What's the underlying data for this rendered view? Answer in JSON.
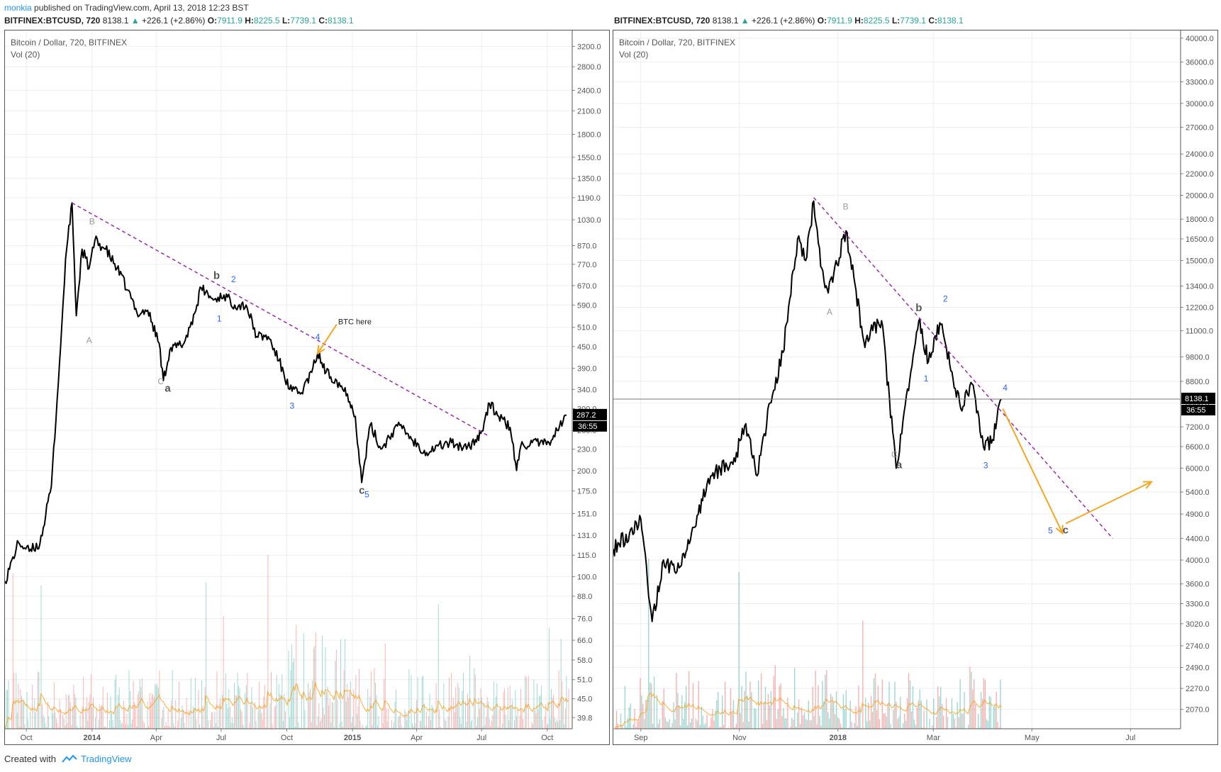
{
  "header": {
    "user": "monkia",
    "published_text": "published on TradingView.com, April 13, 2018 12:23 BST"
  },
  "tickers": [
    {
      "symbol": "BITFINEX:BTCUSD, 720",
      "last": "8138.1",
      "arrow": "▲",
      "change": "+226.1 (+2.86%)",
      "o_label": "O:",
      "o": "7911.9",
      "h_label": "H:",
      "h": "8225.5",
      "l_label": "L:",
      "l": "7739.1",
      "c_label": "C:",
      "c": "8138.1"
    },
    {
      "symbol": "BITFINEX:BTCUSD, 720",
      "last": "8138.1",
      "arrow": "▲",
      "change": "+226.1 (+2.86%)",
      "o_label": "O:",
      "o": "7911.9",
      "h_label": "H:",
      "h": "8225.5",
      "l_label": "L:",
      "l": "7739.1",
      "c_label": "C:",
      "c": "8138.1"
    }
  ],
  "colors": {
    "price_line": "#000000",
    "trendline": "#9c27b0",
    "arrow": "#f5a623",
    "wave_blue": "#2962ff",
    "wave_gray": "#999999",
    "wave_dark": "#555555",
    "vol_up": "#26a69a",
    "vol_down": "#ef5350",
    "vol_ma": "#ff9800"
  },
  "footer": {
    "created_with": "Created with",
    "brand": "TradingView"
  },
  "chart_data": [
    {
      "type": "line",
      "title": "Bitcoin / Dollar, 720, BITFINEX",
      "subtitle": "Vol (20)",
      "y_scale": "log",
      "ylim": [
        37,
        3500
      ],
      "x_ticks": [
        "Oct",
        "2014",
        "Apr",
        "Jul",
        "Oct",
        "2015",
        "Apr",
        "Jul",
        "Oct"
      ],
      "y_ticks": [
        "3200.0",
        "2800.0",
        "2400.0",
        "2100.0",
        "1800.0",
        "1550.0",
        "1350.0",
        "1190.0",
        "1030.0",
        "870.0",
        "770.0",
        "670.0",
        "590.0",
        "510.0",
        "450.0",
        "390.0",
        "340.0",
        "300.0",
        "260.0",
        "230.0",
        "200.0",
        "175.0",
        "151.0",
        "131.0",
        "115.0",
        "100.0",
        "88.0",
        "76.0",
        "66.0",
        "58.0",
        "51.0",
        "45.0",
        "39.8"
      ],
      "last_price_label": "287.2",
      "countdown_label": "36:55",
      "series": [
        {
          "x": [
            "2013-09-01",
            "2013-09-20",
            "2013-10-05",
            "2013-10-20",
            "2013-11-05",
            "2013-11-18",
            "2013-11-25",
            "2013-12-04",
            "2013-12-10",
            "2013-12-18",
            "2013-12-28",
            "2014-01-05",
            "2014-01-20",
            "2014-02-05",
            "2014-02-20",
            "2014-03-05",
            "2014-03-20",
            "2014-04-05",
            "2014-04-11",
            "2014-04-20",
            "2014-05-10",
            "2014-05-25",
            "2014-06-03",
            "2014-06-20",
            "2014-07-05",
            "2014-07-20",
            "2014-08-05",
            "2014-08-20",
            "2014-09-05",
            "2014-09-20",
            "2014-10-05",
            "2014-10-20",
            "2014-11-05",
            "2014-11-13",
            "2014-11-25",
            "2014-12-10",
            "2014-12-25",
            "2015-01-05",
            "2015-01-14",
            "2015-01-26",
            "2015-02-10",
            "2015-02-25",
            "2015-03-10",
            "2015-03-25",
            "2015-04-15",
            "2015-05-01",
            "2015-05-20",
            "2015-06-10",
            "2015-06-30",
            "2015-07-12",
            "2015-07-25",
            "2015-08-10",
            "2015-08-19",
            "2015-08-25",
            "2015-09-10",
            "2015-09-30",
            "2015-10-15",
            "2015-10-28"
          ],
          "values": [
            97,
            125,
            118,
            124,
            180,
            450,
            800,
            1150,
            550,
            850,
            750,
            900,
            850,
            750,
            650,
            560,
            570,
            460,
            360,
            440,
            460,
            560,
            660,
            610,
            630,
            590,
            590,
            480,
            480,
            410,
            340,
            330,
            380,
            430,
            380,
            360,
            330,
            285,
            185,
            270,
            230,
            255,
            270,
            245,
            225,
            235,
            240,
            230,
            255,
            310,
            285,
            265,
            200,
            235,
            240,
            237,
            260,
            287
          ]
        }
      ],
      "trendline": {
        "from": [
          "2013-12-04",
          1150
        ],
        "to": [
          "2015-07-12",
          250
        ]
      },
      "arrows": [
        {
          "from": [
            "2014-12-10",
            520
          ],
          "to": [
            "2014-11-13",
            430
          ]
        }
      ],
      "annotations": [
        {
          "text": "B",
          "x": "2013-12-28",
          "y": 1000,
          "style": "gray"
        },
        {
          "text": "A",
          "x": "2013-12-24",
          "y": 460,
          "style": "gray"
        },
        {
          "text": "C",
          "x": "2014-04-03",
          "y": 352,
          "style": "gray"
        },
        {
          "text": "a",
          "x": "2014-04-13",
          "y": 335,
          "style": "dark"
        },
        {
          "text": "b",
          "x": "2014-06-20",
          "y": 700,
          "style": "dark"
        },
        {
          "text": "1",
          "x": "2014-06-25",
          "y": 530,
          "style": "blue"
        },
        {
          "text": "2",
          "x": "2014-07-15",
          "y": 685,
          "style": "blue"
        },
        {
          "text": "3",
          "x": "2014-10-05",
          "y": 300,
          "style": "blue"
        },
        {
          "text": "4",
          "x": "2014-11-10",
          "y": 470,
          "style": "blue"
        },
        {
          "text": "BTC here",
          "x": "2014-12-12",
          "y": 520,
          "style": "note"
        },
        {
          "text": "c",
          "x": "2015-01-10",
          "y": 172,
          "style": "dark"
        },
        {
          "text": "5",
          "x": "2015-01-18",
          "y": 168,
          "style": "blue"
        }
      ],
      "volume": {
        "label": "Vol (20)",
        "relative_max": 1.0
      }
    },
    {
      "type": "line",
      "title": "Bitcoin / Dollar, 720, BITFINEX",
      "subtitle": "Vol (20)",
      "y_scale": "log",
      "ylim": [
        1900,
        41000
      ],
      "x_ticks": [
        "Sep",
        "Nov",
        "2018",
        "Mar",
        "May",
        "Jul"
      ],
      "y_ticks": [
        "40000.0",
        "36000.0",
        "33000.0",
        "30000.0",
        "27000.0",
        "24000.0",
        "22000.0",
        "20000.0",
        "18000.0",
        "16500.0",
        "15000.0",
        "13400.0",
        "12200.0",
        "11000.0",
        "9800.0",
        "8800.0",
        "8000.0",
        "7200.0",
        "6600.0",
        "6000.0",
        "5400.0",
        "4900.0",
        "4400.0",
        "4000.0",
        "3600.0",
        "3300.0",
        "3020.0",
        "2740.0",
        "2490.0",
        "2270.0",
        "2070.0"
      ],
      "last_price_label": "8138.1",
      "countdown_label": "36:55",
      "series": [
        {
          "x": [
            "2017-08-15",
            "2017-08-25",
            "2017-09-01",
            "2017-09-08",
            "2017-09-15",
            "2017-09-22",
            "2017-10-01",
            "2017-10-12",
            "2017-10-20",
            "2017-10-28",
            "2017-11-05",
            "2017-11-12",
            "2017-11-20",
            "2017-11-28",
            "2017-12-07",
            "2017-12-12",
            "2017-12-17",
            "2017-12-22",
            "2017-12-26",
            "2018-01-06",
            "2018-01-17",
            "2018-01-28",
            "2018-02-06",
            "2018-02-20",
            "2018-02-26",
            "2018-03-05",
            "2018-03-18",
            "2018-03-25",
            "2018-04-01",
            "2018-04-06",
            "2018-04-12"
          ],
          "values": [
            4200,
            4500,
            4800,
            3050,
            4000,
            3800,
            4300,
            5600,
            6000,
            6100,
            7300,
            5800,
            8000,
            10000,
            16500,
            15000,
            19500,
            14500,
            13000,
            17100,
            10500,
            11500,
            6000,
            11500,
            9600,
            11400,
            7800,
            8700,
            6600,
            6700,
            8138
          ]
        }
      ],
      "trendline": {
        "from": [
          "2017-12-17",
          19800
        ],
        "to": [
          "2018-06-20",
          4400
        ]
      },
      "arrows": [
        {
          "from": [
            "2018-04-13",
            7800
          ],
          "to": [
            "2018-05-20",
            4500
          ]
        },
        {
          "from": [
            "2018-05-22",
            4700
          ],
          "to": [
            "2018-07-14",
            5650
          ]
        }
      ],
      "horizontal_line": 8138.1,
      "annotations": [
        {
          "text": "B",
          "x": "2018-01-04",
          "y": 18800,
          "style": "gray"
        },
        {
          "text": "A",
          "x": "2017-12-25",
          "y": 11800,
          "style": "gray"
        },
        {
          "text": "C",
          "x": "2018-02-03",
          "y": 6300,
          "style": "gray"
        },
        {
          "text": "a",
          "x": "2018-02-06",
          "y": 6000,
          "style": "dark"
        },
        {
          "text": "b",
          "x": "2018-02-18",
          "y": 12000,
          "style": "dark"
        },
        {
          "text": "1",
          "x": "2018-02-23",
          "y": 8800,
          "style": "blue"
        },
        {
          "text": "2",
          "x": "2018-03-07",
          "y": 12500,
          "style": "blue"
        },
        {
          "text": "3",
          "x": "2018-04-01",
          "y": 6000,
          "style": "blue"
        },
        {
          "text": "4",
          "x": "2018-04-13",
          "y": 8450,
          "style": "blue"
        },
        {
          "text": "5",
          "x": "2018-05-11",
          "y": 4500,
          "style": "blue"
        },
        {
          "text": "c",
          "x": "2018-05-20",
          "y": 4500,
          "style": "dark"
        }
      ],
      "volume": {
        "label": "Vol (20)",
        "relative_max": 1.0
      }
    }
  ]
}
